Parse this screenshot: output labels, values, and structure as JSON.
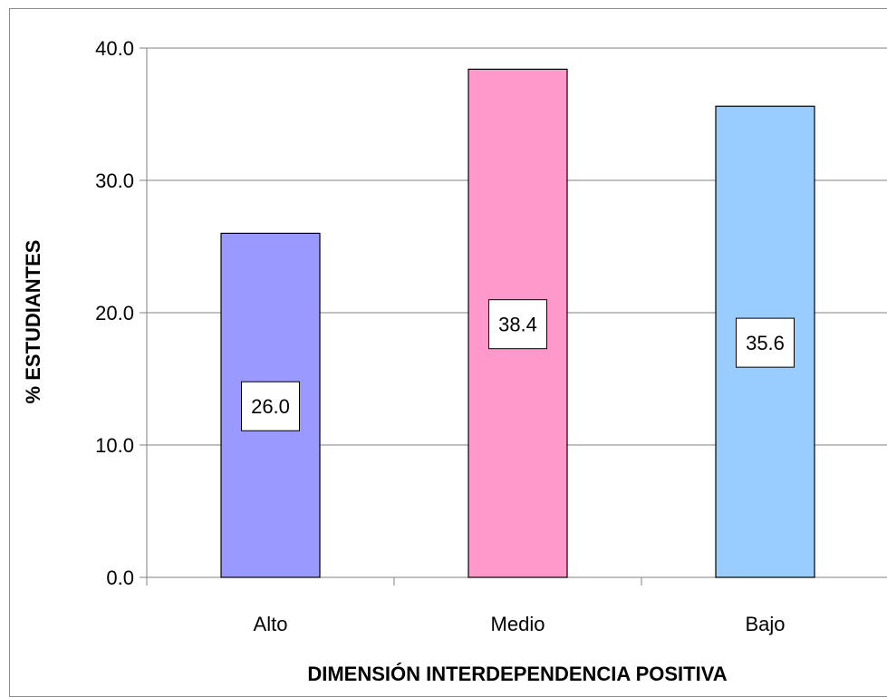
{
  "chart_data": {
    "type": "bar",
    "categories": [
      "Alto",
      "Medio",
      "Bajo"
    ],
    "values": [
      26.0,
      38.4,
      35.6
    ],
    "value_labels": [
      "26.0",
      "38.4",
      "35.6"
    ],
    "colors": [
      "#9999ff",
      "#ff99cc",
      "#99ccff"
    ],
    "xlabel": "DIMENSIÓN INTERDEPENDENCIA POSITIVA",
    "ylabel": "% ESTUDIANTES",
    "ylim": [
      0,
      40
    ],
    "yticks": [
      "0.0",
      "10.0",
      "20.0",
      "30.0",
      "40.0"
    ],
    "ytick_values": [
      0,
      10,
      20,
      30,
      40
    ],
    "grid": true,
    "legend": "none"
  }
}
